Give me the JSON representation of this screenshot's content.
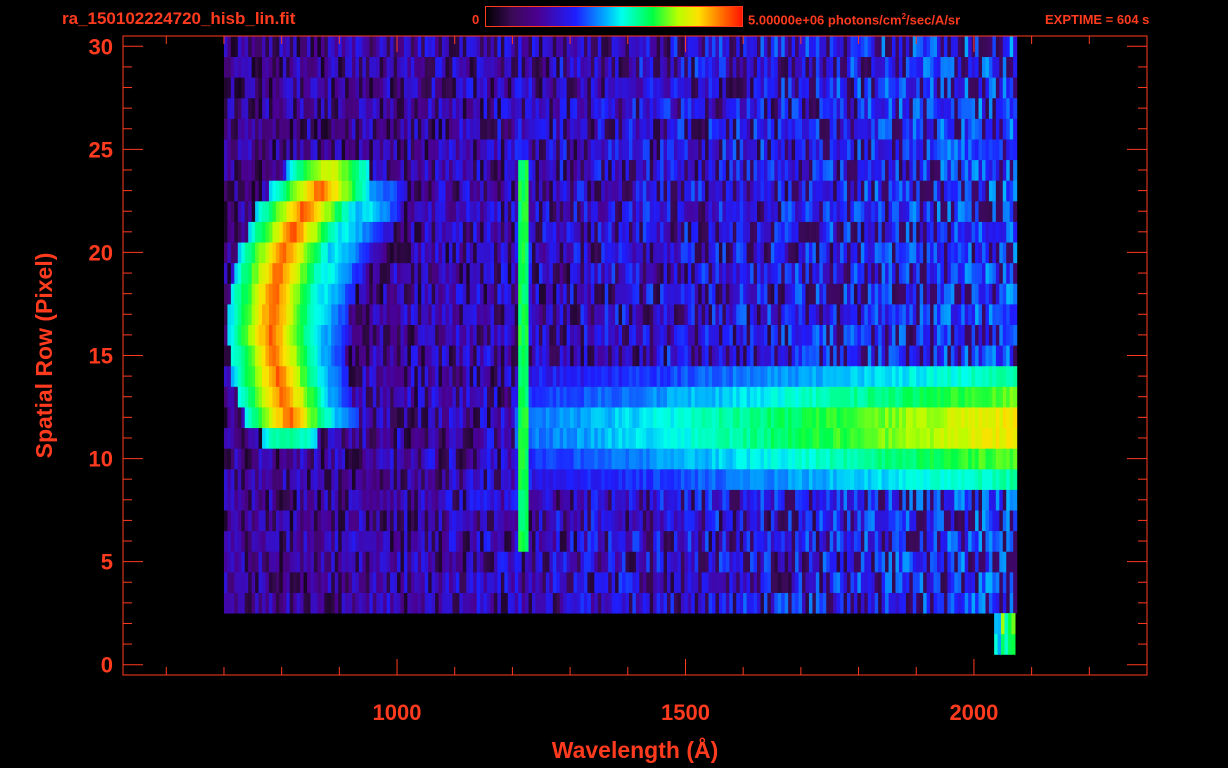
{
  "header": {
    "filename": "ra_150102224720_hisb_lin.fit",
    "colorbar_min": "0",
    "colorbar_max_value": "5.00000e+06 photons/cm",
    "colorbar_units_sup": "2",
    "colorbar_units_rest": "/sec/A/sr",
    "exptime": "EXPTIME = 604 s"
  },
  "colors": {
    "axis": "#ff3b1f",
    "background": "#000000"
  },
  "chart_data": {
    "type": "heatmap",
    "xlabel": "Wavelength (Å)",
    "ylabel": "Spatial Row (Pixel)",
    "xlim": [
      525,
      2300
    ],
    "ylim": [
      -0.5,
      30.5
    ],
    "xticks": [
      1000,
      1500,
      2000
    ],
    "yticks": [
      0,
      5,
      10,
      15,
      20,
      25,
      30
    ],
    "colorbar_range": [
      0,
      5000000
    ],
    "coverage_rows": [
      {
        "row": 30,
        "x_start": 700,
        "x_end": 2070
      },
      {
        "row": 3,
        "x_start": 700,
        "x_end": 2070
      },
      {
        "row": 2,
        "x_start": 2035,
        "x_end": 2070
      },
      {
        "row": 1,
        "x_start": 2035,
        "x_end": 2070
      }
    ],
    "features": [
      {
        "name": "arc_outer",
        "points": [
          [
            810,
            12
          ],
          [
            790,
            14
          ],
          [
            780,
            16
          ],
          [
            785,
            18
          ],
          [
            800,
            20
          ],
          [
            835,
            22
          ],
          [
            880,
            23.5
          ]
        ],
        "level": 0.92
      },
      {
        "name": "arc_inner",
        "points": [
          [
            880,
            12
          ],
          [
            860,
            13
          ],
          [
            855,
            15
          ],
          [
            860,
            17
          ],
          [
            880,
            19
          ],
          [
            910,
            21
          ],
          [
            960,
            22.5
          ]
        ],
        "level": 0.5
      },
      {
        "name": "lyman_alpha_line",
        "x": 1216,
        "y_range": [
          6,
          24
        ],
        "level": 0.6
      },
      {
        "name": "continuum_band",
        "y_range": [
          9,
          14
        ],
        "x_range": [
          1200,
          2070
        ],
        "level_start": 0.4,
        "level_end": 0.85
      }
    ]
  }
}
